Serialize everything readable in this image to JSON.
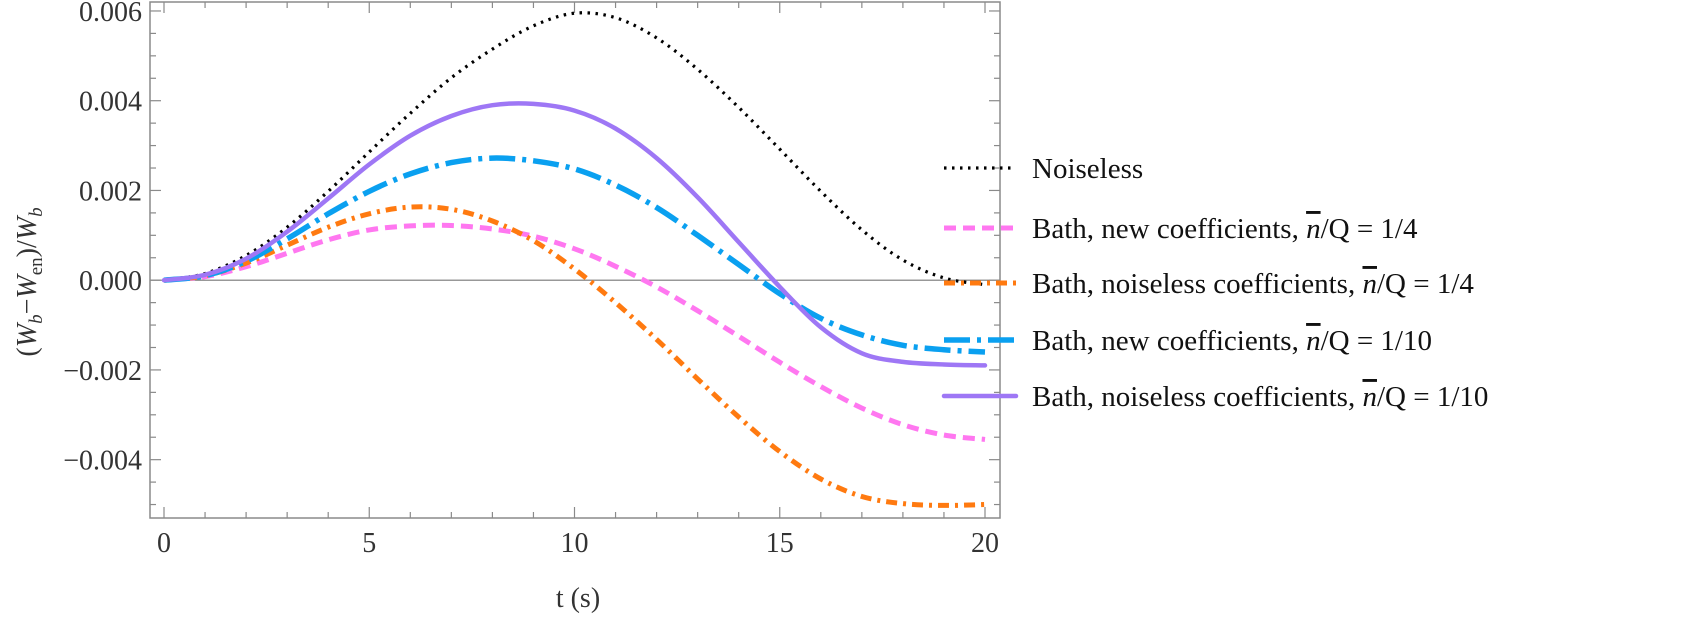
{
  "chart_data": {
    "type": "line",
    "title": "",
    "xlabel": "t (s)",
    "ylabel": "(W_b−W_en)/W_b",
    "ylabel_parts": {
      "open": "(",
      "w1": "W",
      "s1": "b",
      "minus": "−",
      "w2": "W",
      "s2": "en",
      "mid": ")/",
      "w3": "W",
      "s3": "b"
    },
    "xlim": [
      -0.4,
      20.4
    ],
    "ylim": [
      -0.0053,
      0.0062
    ],
    "x_ticks": [
      0,
      5,
      10,
      15,
      20
    ],
    "x_tick_labels": [
      "0",
      "5",
      "10",
      "15",
      "20"
    ],
    "y_ticks": [
      -0.004,
      -0.002,
      0.0,
      0.002,
      0.004,
      0.006
    ],
    "y_tick_labels": [
      "−0.004",
      "−0.002",
      "0.000",
      "0.002",
      "0.004",
      "0.006"
    ],
    "legend_position": "right",
    "x": [
      0,
      1,
      2,
      3,
      4,
      5,
      6,
      7,
      8,
      9,
      10,
      11,
      12,
      13,
      14,
      15,
      16,
      17,
      18,
      19,
      20
    ],
    "series": [
      {
        "name": "Noiseless",
        "legend_label": "Noiseless",
        "color": "#000000",
        "dash": "dotted",
        "values": [
          0.0,
          0.00015,
          0.00055,
          0.00118,
          0.00198,
          0.00286,
          0.00372,
          0.00451,
          0.00515,
          0.00567,
          0.00595,
          0.00585,
          0.0054,
          0.0047,
          0.00385,
          0.00292,
          0.00198,
          0.00112,
          0.00045,
          5e-05,
          -0.0001
        ]
      },
      {
        "name": "Bath, new coefficients, n/Q = 1/4",
        "legend_label": "Bath, new coefficients, ",
        "legend_ratio": "/Q = 1/4",
        "color": "#FF77F0",
        "dash": "dashed",
        "values": [
          0.0,
          8e-05,
          0.0003,
          0.0006,
          0.0009,
          0.00112,
          0.00121,
          0.00122,
          0.00114,
          0.00098,
          0.0007,
          0.00031,
          -0.00015,
          -0.00068,
          -0.00125,
          -0.00183,
          -0.00237,
          -0.00285,
          -0.00322,
          -0.00345,
          -0.00355
        ]
      },
      {
        "name": "Bath, noiseless coefficients, n/Q = 1/4",
        "legend_label": "Bath, noiseless coefficients, ",
        "legend_ratio": "/Q = 1/4",
        "color": "#FF7A10",
        "dash": "dashdot",
        "values": [
          0.0,
          0.0001,
          0.00038,
          0.00078,
          0.00118,
          0.00148,
          0.00163,
          0.00158,
          0.00132,
          0.00088,
          0.00025,
          -0.0005,
          -0.00132,
          -0.0022,
          -0.00305,
          -0.00382,
          -0.00443,
          -0.00482,
          -0.00498,
          -0.00502,
          -0.005
        ]
      },
      {
        "name": "Bath, new coefficients, n/Q = 1/10",
        "legend_label": "Bath, new coefficients, ",
        "legend_ratio": "/Q = 1/10",
        "color": "#0AA0F0",
        "dash": "longdash",
        "values": [
          0.0,
          0.0001,
          0.00042,
          0.00092,
          0.00148,
          0.00198,
          0.00237,
          0.00262,
          0.00272,
          0.00266,
          0.00248,
          0.00212,
          0.00162,
          0.001,
          0.00035,
          -0.0003,
          -0.00085,
          -0.00122,
          -0.00145,
          -0.00155,
          -0.0016
        ]
      },
      {
        "name": "Bath, noiseless coefficients, n/Q = 1/10",
        "legend_label": "Bath, noiseless coefficients, ",
        "legend_ratio": "/Q = 1/10",
        "color": "#9E77F5",
        "dash": "solid",
        "values": [
          0.0,
          0.00012,
          0.00048,
          0.00108,
          0.00182,
          0.00258,
          0.00322,
          0.00366,
          0.0039,
          0.00393,
          0.00378,
          0.00338,
          0.00272,
          0.00185,
          0.00085,
          -0.00015,
          -0.00105,
          -0.00163,
          -0.00182,
          -0.00188,
          -0.0019
        ]
      }
    ]
  },
  "legend": {
    "n_bar_symbol": "n"
  }
}
